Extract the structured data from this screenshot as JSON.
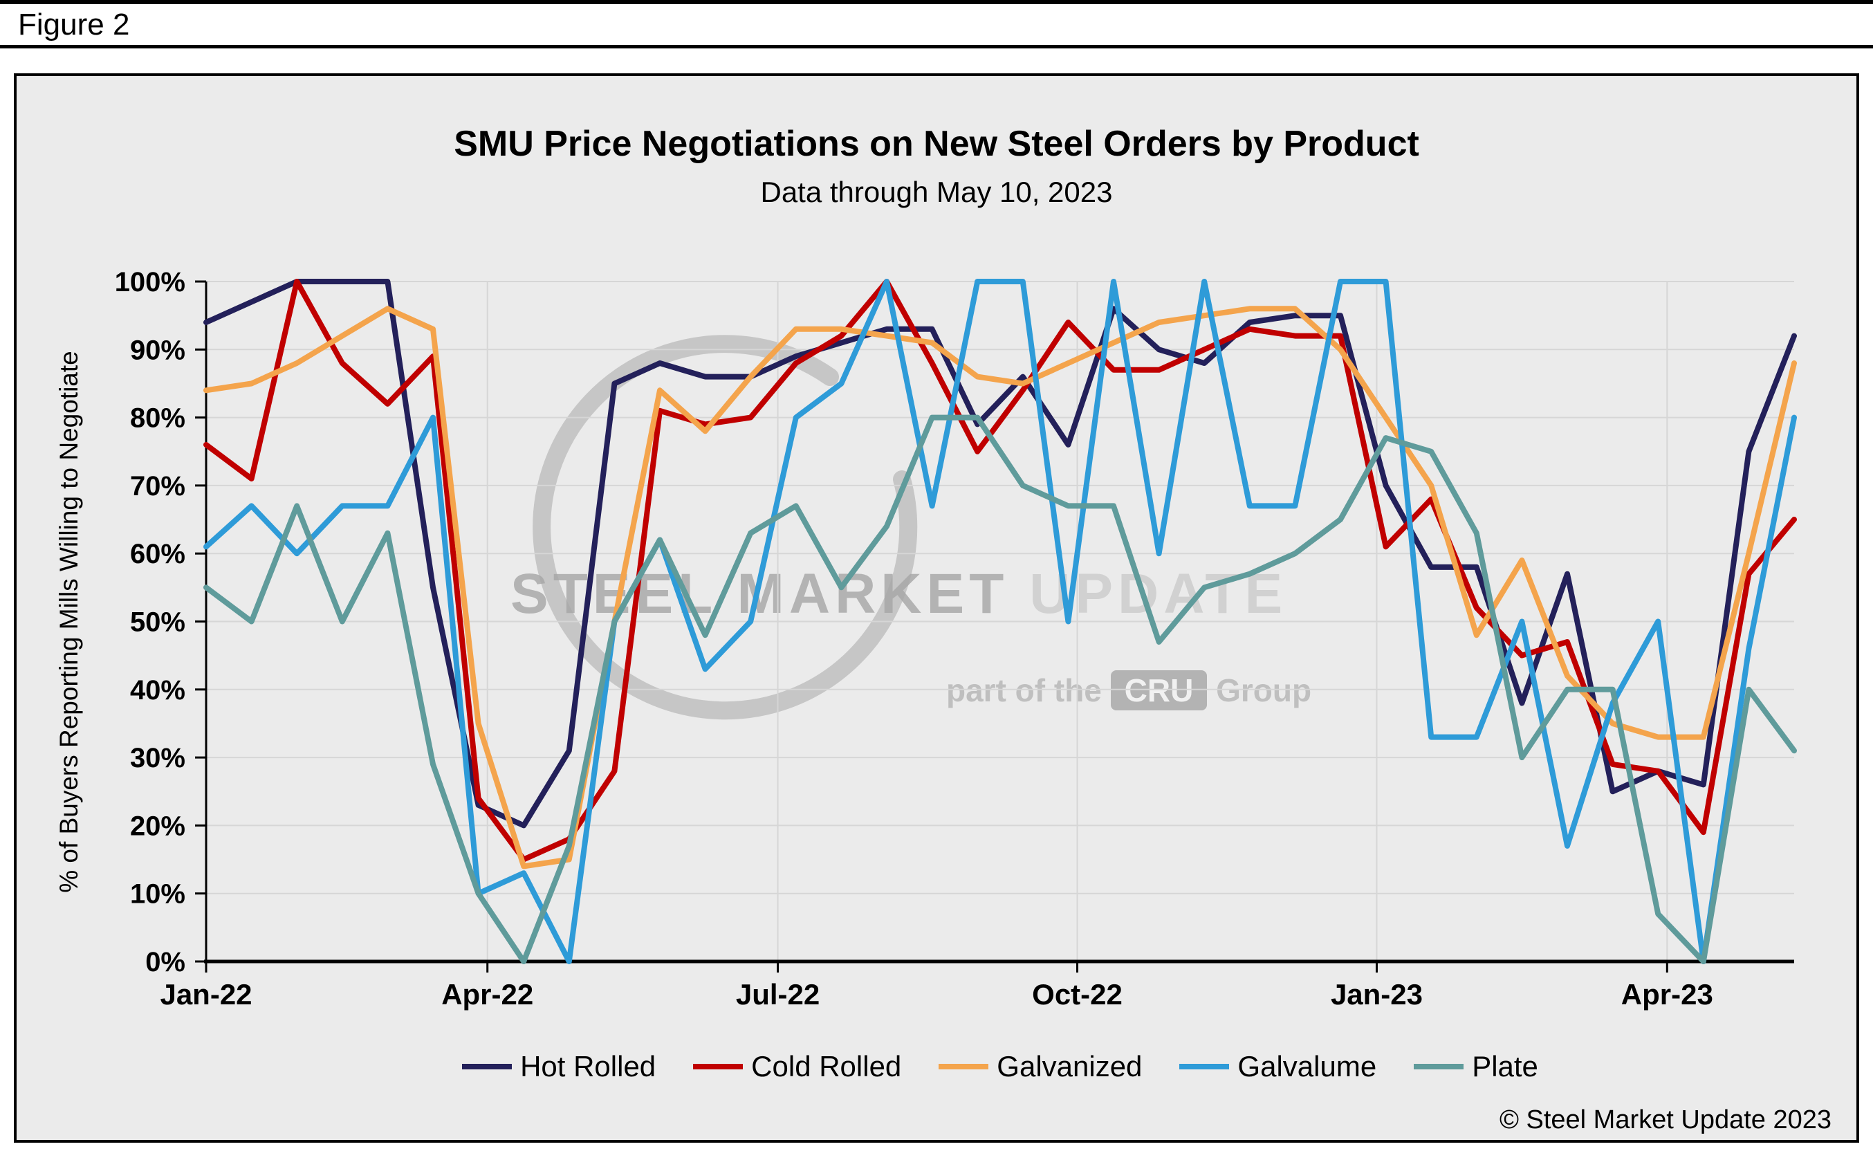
{
  "figure_label": "Figure 2",
  "copyright": "© Steel Market Update 2023",
  "watermark": {
    "line1_bold": "STEEL MARKET",
    "line1_light": "UPDATE",
    "line2_prefix": "part of the",
    "line2_box": "CRU",
    "line2_suffix": "Group"
  },
  "chart_data": {
    "type": "line",
    "title": "SMU Price Negotiations on New Steel Orders by Product",
    "subtitle": "Data through May 10, 2023",
    "xlabel": "",
    "ylabel": "% of Buyers Reporting Mills Willing to Negotiate",
    "ylim": [
      0,
      100
    ],
    "y_ticks": [
      0,
      10,
      20,
      30,
      40,
      50,
      60,
      70,
      80,
      90,
      100
    ],
    "y_tick_suffix": "%",
    "x_tick_labels": [
      "Jan-22",
      "Apr-22",
      "Jul-22",
      "Oct-22",
      "Jan-23",
      "Apr-23"
    ],
    "x_tick_positions": [
      0,
      6.2,
      12.6,
      19.2,
      25.8,
      32.2
    ],
    "grid": true,
    "legend_position": "bottom",
    "point_spacing": "biweekly survey points, Jan 2022 through May 10 2023",
    "series": [
      {
        "name": "Hot Rolled",
        "color": "#23205A",
        "values": [
          94,
          97,
          100,
          100,
          100,
          55,
          23,
          20,
          31,
          85,
          88,
          86,
          86,
          89,
          91,
          93,
          93,
          79,
          86,
          76,
          96,
          90,
          88,
          94,
          95,
          95,
          70,
          58,
          58,
          38,
          57,
          25,
          28,
          26,
          75,
          92
        ]
      },
      {
        "name": "Cold Rolled",
        "color": "#C00000",
        "values": [
          76,
          71,
          100,
          88,
          82,
          89,
          24,
          15,
          18,
          28,
          81,
          79,
          80,
          88,
          92,
          100,
          88,
          75,
          84,
          94,
          87,
          87,
          90,
          93,
          92,
          92,
          61,
          68,
          52,
          45,
          47,
          29,
          28,
          19,
          57,
          65
        ]
      },
      {
        "name": "Galvanized",
        "color": "#F4A44C",
        "values": [
          84,
          85,
          88,
          92,
          96,
          93,
          35,
          14,
          15,
          50,
          84,
          78,
          86,
          93,
          93,
          92,
          91,
          86,
          85,
          88,
          91,
          94,
          95,
          96,
          96,
          90,
          80,
          70,
          48,
          59,
          42,
          35,
          33,
          33,
          60,
          88
        ]
      },
      {
        "name": "Galvalume",
        "color": "#2E9BD8",
        "values": [
          61,
          67,
          60,
          67,
          67,
          80,
          10,
          13,
          0,
          50,
          62,
          43,
          50,
          80,
          85,
          100,
          67,
          100,
          100,
          50,
          100,
          60,
          100,
          67,
          67,
          100,
          100,
          33,
          33,
          50,
          17,
          38,
          50,
          0,
          46,
          80
        ]
      },
      {
        "name": "Plate",
        "color": "#5F9B9B",
        "values": [
          55,
          50,
          67,
          50,
          63,
          29,
          10,
          0,
          17,
          50,
          62,
          48,
          63,
          67,
          55,
          64,
          80,
          80,
          70,
          67,
          67,
          47,
          55,
          57,
          60,
          65,
          77,
          75,
          63,
          30,
          40,
          40,
          7,
          0,
          40,
          31
        ]
      }
    ]
  }
}
